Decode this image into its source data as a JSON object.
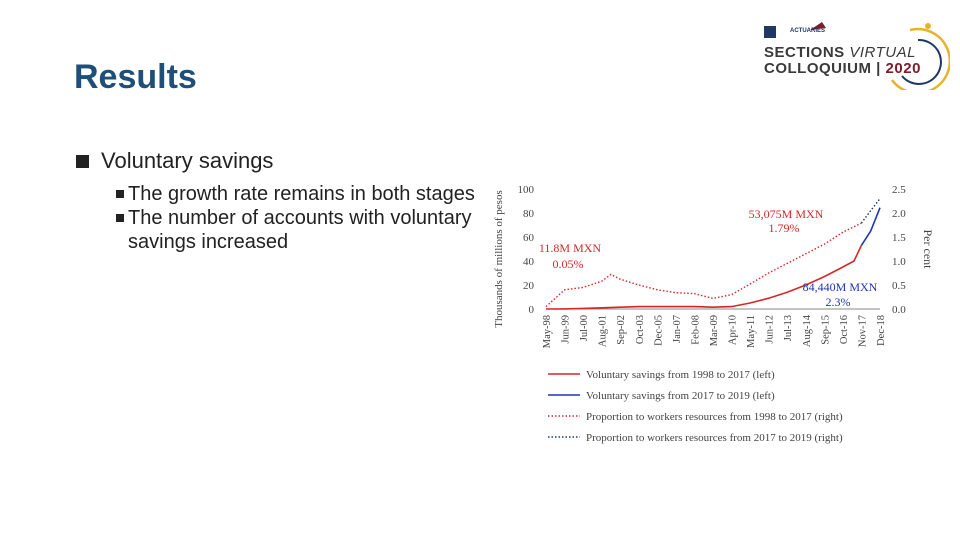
{
  "slide": {
    "title": "Results"
  },
  "logo": {
    "org": "ACTUARIES",
    "line1_a": "SECTIONS",
    "line1_b": "VIRTUAL",
    "line2_a": "COLLOQUIUM",
    "line2_b": "2020",
    "colors": {
      "gold": "#e7b32a",
      "navy": "#1f3864",
      "maroon": "#7b1f2a"
    },
    "icon": "globe-orbit-icon"
  },
  "bullets": {
    "main": "Voluntary savings",
    "sub": [
      "The growth rate remains in both stages",
      "The number of accounts with voluntary savings increased"
    ]
  },
  "chart_data": {
    "type": "line",
    "ylabel": "Thousands of millions of pesos",
    "y2label": "Per cent",
    "ylim": [
      0,
      100
    ],
    "y2lim": [
      0,
      2.5
    ],
    "yticks": [
      "0",
      "20",
      "40",
      "60",
      "80",
      "100"
    ],
    "y2ticks": [
      "0.0",
      "0.5",
      "1.0",
      "1.5",
      "2.0",
      "2.5"
    ],
    "x_ticks": [
      "May-98",
      "Jun-99",
      "Jul-00",
      "Aug-01",
      "Sep-02",
      "Oct-03",
      "Dec-05",
      "Jan-07",
      "Feb-08",
      "Mar-09",
      "Apr-10",
      "May-11",
      "Jun-12",
      "Jul-13",
      "Aug-14",
      "Sep-15",
      "Oct-16",
      "Nov-17",
      "Dec-18"
    ],
    "annotations": [
      {
        "text": "53,075M MXN",
        "color": "#d62728"
      },
      {
        "text": "1.79%",
        "color": "#d62728"
      },
      {
        "text": "11.8M MXN",
        "color": "#d62728"
      },
      {
        "text": "0.05%",
        "color": "#d62728"
      },
      {
        "text": "84,440M MXN",
        "color": "#1f35b5"
      },
      {
        "text": "2.3%",
        "color": "#1f35b5"
      }
    ],
    "series": [
      {
        "name": "Voluntary savings from 1998 to 2017 (left)",
        "axis": "left",
        "style": "solid",
        "color": "#d62728",
        "points": [
          [
            0,
            0.01
          ],
          [
            1,
            0.1
          ],
          [
            2,
            0.5
          ],
          [
            3,
            1
          ],
          [
            4,
            1.5
          ],
          [
            5,
            2
          ],
          [
            6,
            2
          ],
          [
            7,
            2
          ],
          [
            8,
            2
          ],
          [
            9,
            1.5
          ],
          [
            10,
            2
          ],
          [
            11,
            5
          ],
          [
            12,
            9
          ],
          [
            13,
            14
          ],
          [
            14,
            20
          ],
          [
            15,
            27
          ],
          [
            16,
            35
          ],
          [
            16.6,
            40
          ],
          [
            17,
            53
          ]
        ]
      },
      {
        "name": "Voluntary savings from 2017 to 2019 (left)",
        "axis": "left",
        "style": "solid",
        "color": "#1f35b5",
        "points": [
          [
            17,
            53
          ],
          [
            17.5,
            65
          ],
          [
            18,
            84.4
          ]
        ]
      },
      {
        "name": "Proportion to workers resources from 1998 to 2017 (right)",
        "axis": "right",
        "style": "dotted",
        "color": "#d62728",
        "points": [
          [
            0,
            0.05
          ],
          [
            1,
            0.4
          ],
          [
            2,
            0.45
          ],
          [
            3,
            0.58
          ],
          [
            3.5,
            0.72
          ],
          [
            4,
            0.62
          ],
          [
            5,
            0.5
          ],
          [
            6,
            0.4
          ],
          [
            7,
            0.34
          ],
          [
            8,
            0.32
          ],
          [
            9,
            0.22
          ],
          [
            10,
            0.3
          ],
          [
            11,
            0.52
          ],
          [
            12,
            0.75
          ],
          [
            13,
            0.95
          ],
          [
            14,
            1.15
          ],
          [
            15,
            1.35
          ],
          [
            16,
            1.6
          ],
          [
            17,
            1.79
          ]
        ]
      },
      {
        "name": "Proportion to workers resources from 2017 to 2019 (right)",
        "axis": "right",
        "style": "dotted",
        "color": "#1f3864",
        "points": [
          [
            17,
            1.79
          ],
          [
            17.5,
            2.05
          ],
          [
            18,
            2.3
          ]
        ]
      }
    ],
    "legend_placement": "bottom",
    "grid": false
  }
}
